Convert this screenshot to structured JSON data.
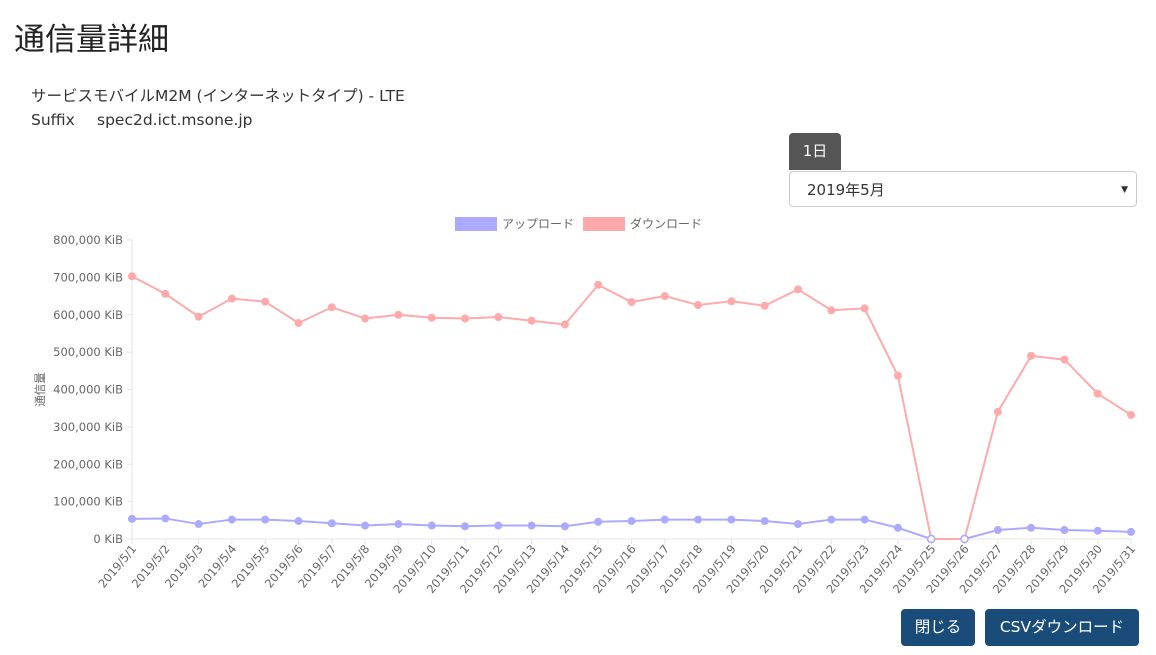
{
  "page": {
    "title": "通信量詳細",
    "service_name": "サービスモバイルM2M (インターネットタイプ) - LTE",
    "suffix_label": "Suffix",
    "suffix_value": "spec2d.ict.msone.jp"
  },
  "controls": {
    "period_tab": "1日",
    "month_selected": "2019年5月"
  },
  "buttons": {
    "close": "閉じる",
    "csv": "CSVダウンロード"
  },
  "chart_data": {
    "type": "line",
    "ylabel": "通信量",
    "ylim": [
      0,
      800000
    ],
    "y_ticks": [
      "0 KiB",
      "100,000 KiB",
      "200,000 KiB",
      "300,000 KiB",
      "400,000 KiB",
      "500,000 KiB",
      "600,000 KiB",
      "700,000 KiB",
      "800,000 KiB"
    ],
    "categories": [
      "2019/5/1",
      "2019/5/2",
      "2019/5/3",
      "2019/5/4",
      "2019/5/5",
      "2019/5/6",
      "2019/5/7",
      "2019/5/8",
      "2019/5/9",
      "2019/5/10",
      "2019/5/11",
      "2019/5/12",
      "2019/5/13",
      "2019/5/14",
      "2019/5/15",
      "2019/5/16",
      "2019/5/17",
      "2019/5/18",
      "2019/5/19",
      "2019/5/20",
      "2019/5/21",
      "2019/5/22",
      "2019/5/23",
      "2019/5/24",
      "2019/5/25",
      "2019/5/26",
      "2019/5/27",
      "2019/5/28",
      "2019/5/29",
      "2019/5/30",
      "2019/5/31"
    ],
    "series": [
      {
        "name": "アップロード",
        "color": "#aaaaff",
        "values": [
          54000,
          55000,
          40000,
          52000,
          52000,
          48000,
          42000,
          36000,
          40000,
          36000,
          34000,
          36000,
          36000,
          34000,
          46000,
          48000,
          52000,
          52000,
          52000,
          48000,
          40000,
          52000,
          52000,
          30000,
          0,
          0,
          24000,
          30000,
          24000,
          22000,
          19000
        ]
      },
      {
        "name": "ダウンロード",
        "color": "#ffaaaa",
        "values": [
          703000,
          656000,
          595000,
          643000,
          635000,
          578000,
          620000,
          590000,
          600000,
          592000,
          590000,
          594000,
          584000,
          574000,
          680000,
          634000,
          650000,
          626000,
          636000,
          624000,
          668000,
          612000,
          617000,
          437000,
          0,
          0,
          340000,
          490000,
          480000,
          389000,
          332000
        ]
      }
    ],
    "legend_position": "top-center",
    "grid": false
  }
}
